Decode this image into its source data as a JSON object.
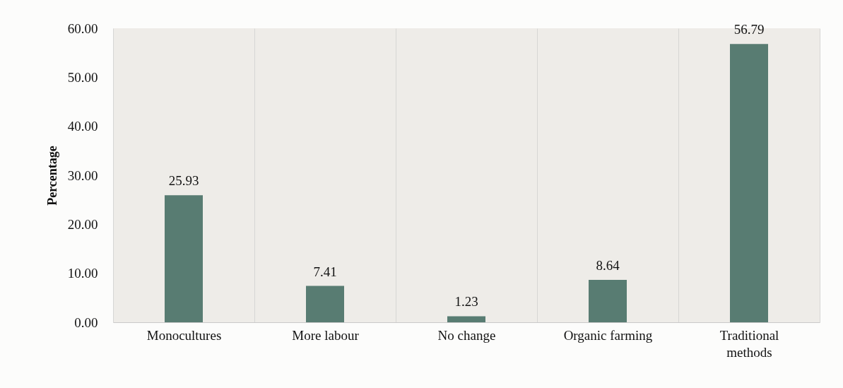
{
  "chart_data": {
    "type": "bar",
    "ylabel": "Percentage",
    "categories": [
      "Monocultures",
      "More labour",
      "No change",
      "Organic farming",
      "Traditional methods"
    ],
    "values": [
      25.93,
      7.41,
      1.23,
      8.64,
      56.79
    ],
    "color": "#587c72",
    "ylim": [
      0,
      60
    ],
    "yticks": [
      {
        "value": 0,
        "label": "0.00"
      },
      {
        "value": 10,
        "label": "10.00"
      },
      {
        "value": 20,
        "label": "20.00"
      },
      {
        "value": 30,
        "label": "30.00"
      },
      {
        "value": 40,
        "label": "40.00"
      },
      {
        "value": 50,
        "label": "50.00"
      },
      {
        "value": 60,
        "label": "60.00"
      }
    ],
    "grid": "x",
    "data_labels": true
  }
}
